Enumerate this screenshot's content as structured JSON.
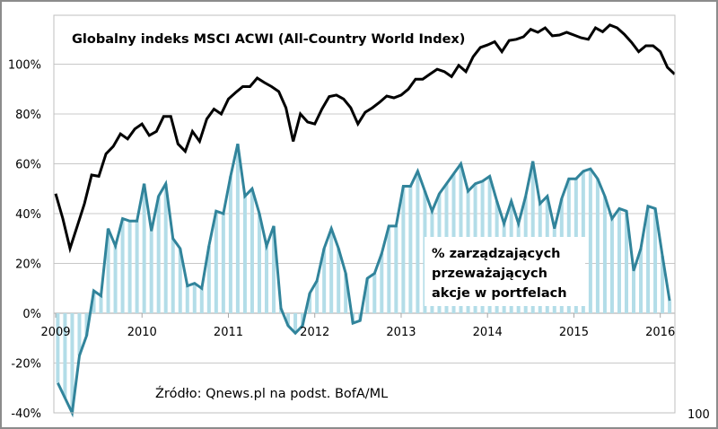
{
  "chart_data": {
    "type": "line",
    "title": "Globalny indeks MSCI ACWI (All-Country World Index)",
    "xlabel": "",
    "ylabel": "",
    "x_unit": "month",
    "x_start": "2009-01",
    "x_ticks": [
      "2009",
      "2010",
      "2011",
      "2012",
      "2013",
      "2014",
      "2015",
      "2016"
    ],
    "y_ticks": [
      "-40%",
      "-20%",
      "0%",
      "20%",
      "40%",
      "60%",
      "80%",
      "100%"
    ],
    "ylim": [
      -40,
      120
    ],
    "grid": true,
    "secondary_axis_label": "100",
    "series": [
      {
        "name": "Globalny indeks MSCI ACWI (All-Country World Index)",
        "kind": "line",
        "color": "#000000",
        "values": [
          48,
          38,
          26,
          35,
          44,
          55.5,
          55,
          64,
          67,
          72,
          70,
          74,
          76,
          71.4,
          73,
          79,
          79,
          68,
          65,
          73,
          69,
          78,
          82,
          80,
          86,
          88.6,
          91,
          91,
          94.4,
          92.6,
          91,
          89,
          82.5,
          69,
          80,
          76.8,
          76,
          82,
          87,
          87.6,
          86,
          82.5,
          76,
          80.7,
          82.5,
          84.7,
          87.2,
          86.5,
          87.6,
          90,
          94,
          94,
          96,
          98,
          97,
          95,
          99.5,
          97,
          103,
          106.7,
          107.7,
          109,
          105,
          109.5,
          110,
          111,
          114,
          112.8,
          114.6,
          111.4,
          111.7,
          112.8,
          111.7,
          110.6,
          110,
          114.6,
          113,
          115.7,
          114.6,
          112,
          108.8,
          105,
          107.4,
          107.4,
          105,
          98.7,
          96
        ]
      },
      {
        "name": "% zarządzających przeważających akcje w portfelach",
        "kind": "line+bars",
        "color": "#31849b",
        "bar_color": "#b3dde8",
        "values": [
          -28,
          -34,
          -40,
          -17,
          -9,
          9,
          7,
          34,
          27,
          38,
          37,
          37,
          52,
          33,
          47,
          52,
          30,
          26,
          11,
          12,
          10,
          27,
          41,
          40,
          55,
          68,
          47,
          50,
          40,
          27,
          35,
          2,
          -5,
          -8,
          -5,
          8,
          13,
          26,
          34,
          26,
          16,
          -4,
          -3,
          14,
          16,
          24,
          35,
          35,
          51,
          51,
          57,
          49,
          41,
          48,
          52,
          56,
          60,
          49,
          52,
          53,
          55,
          45,
          36,
          45,
          36,
          47,
          61,
          44,
          47,
          34,
          46,
          54,
          54,
          57,
          58,
          54,
          47,
          38,
          42,
          41,
          17,
          26,
          43,
          42,
          23,
          5
        ]
      }
    ],
    "legend": {
      "lines": [
        "% zarządzających",
        "przeważających",
        "akcje w portfelach"
      ],
      "placement": "center-right"
    },
    "annotation": "Źródło: Qnews.pl na podst. BofA/ML"
  }
}
